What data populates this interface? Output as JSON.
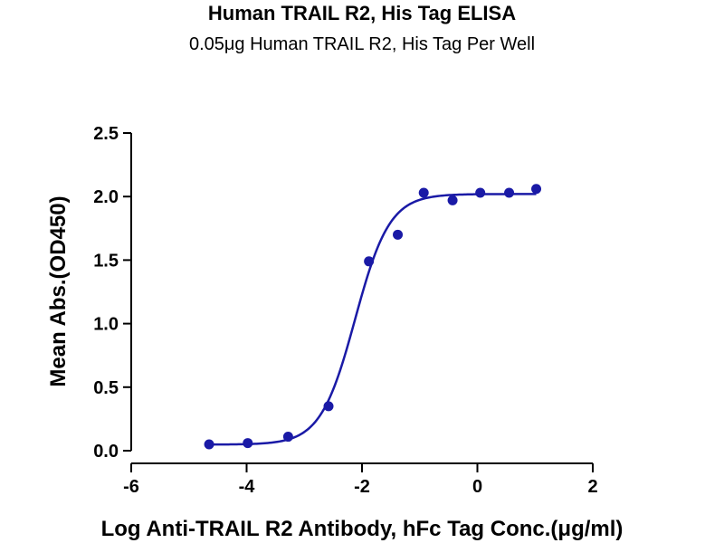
{
  "chart_data": {
    "type": "scatter",
    "title": "Human TRAIL R2, His Tag ELISA",
    "subtitle": "0.05μg Human TRAIL R2, His Tag Per Well",
    "xlabel": "Log Anti-TRAIL R2 Antibody, hFc Tag Conc.(μg/ml)",
    "ylabel": "Mean Abs.(OD450)",
    "xlim": [
      -6,
      2
    ],
    "ylim": [
      0,
      2.5
    ],
    "xticks": [
      -6,
      -4,
      -2,
      0,
      2
    ],
    "yticks": [
      0.0,
      0.5,
      1.0,
      1.5,
      2.0,
      2.5
    ],
    "xtick_labels": [
      "-6",
      "-4",
      "-2",
      "0",
      "2"
    ],
    "ytick_labels": [
      "0.0",
      "0.5",
      "1.0",
      "1.5",
      "2.0",
      "2.5"
    ],
    "grid": false,
    "color": "#1a1aa6",
    "points": {
      "x": [
        -4.65,
        -3.98,
        -3.28,
        -2.58,
        -1.88,
        -1.38,
        -0.93,
        -0.43,
        0.05,
        0.55,
        1.02
      ],
      "y": [
        0.05,
        0.06,
        0.11,
        0.35,
        1.49,
        1.7,
        2.03,
        1.97,
        2.03,
        2.03,
        2.06
      ]
    },
    "fit_curve": {
      "model": "4PL",
      "bottom": 0.048,
      "top": 2.02,
      "log_ec50": -2.12,
      "hill_slope": 1.45,
      "x_range": [
        -4.65,
        1.02
      ]
    }
  }
}
